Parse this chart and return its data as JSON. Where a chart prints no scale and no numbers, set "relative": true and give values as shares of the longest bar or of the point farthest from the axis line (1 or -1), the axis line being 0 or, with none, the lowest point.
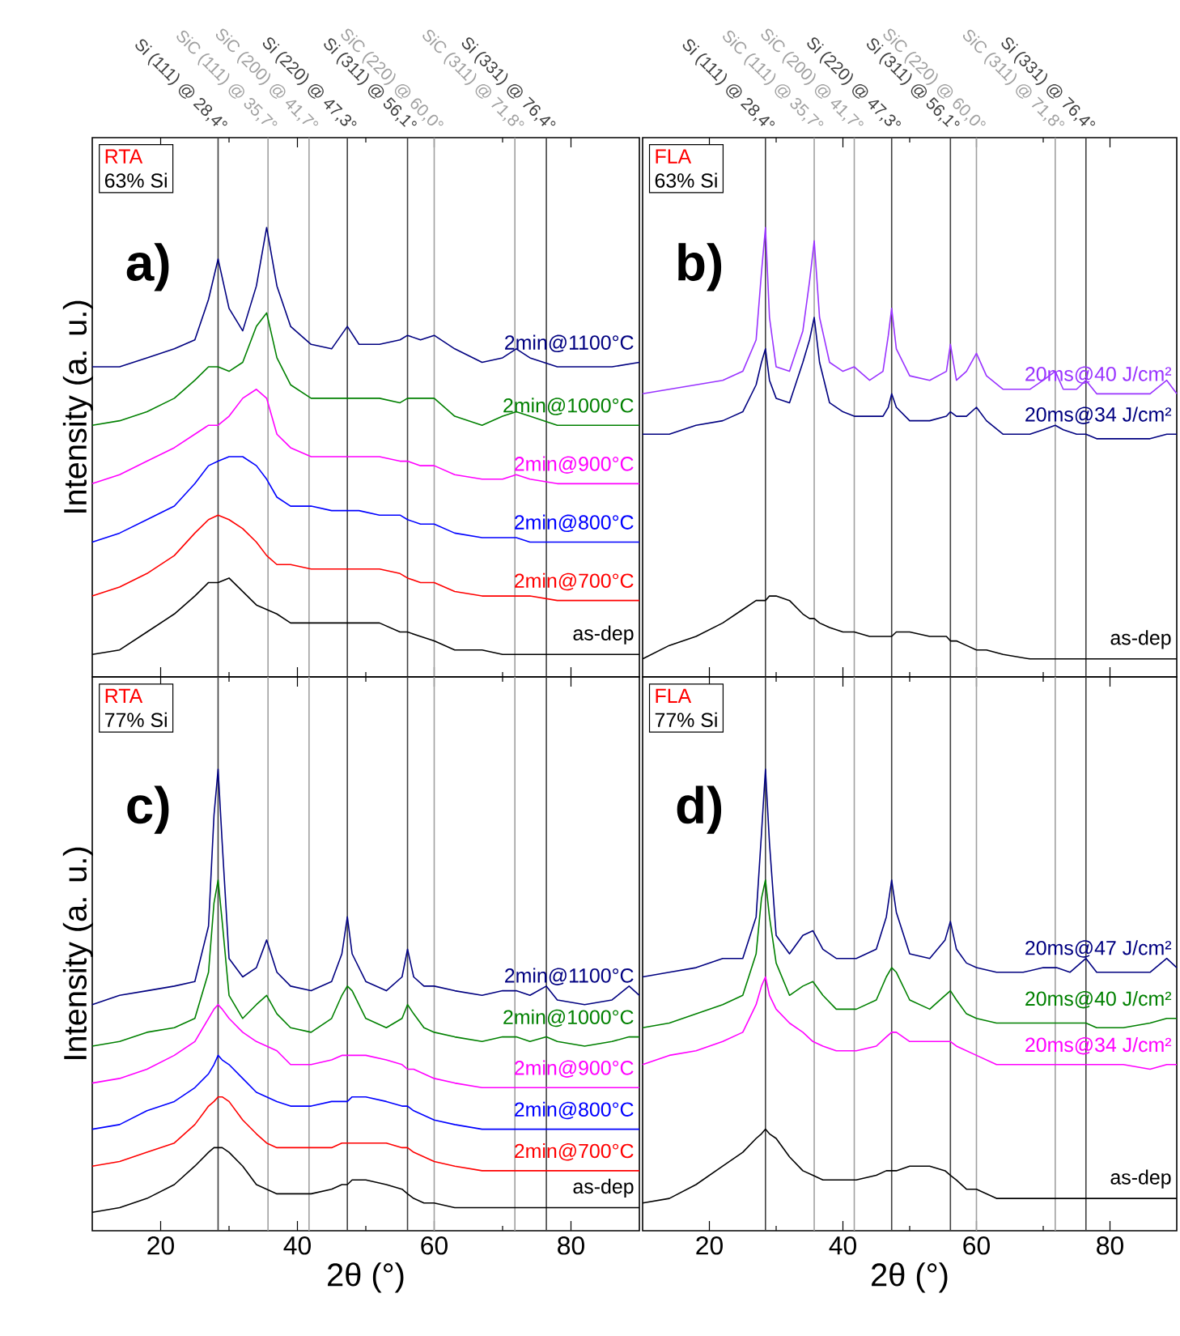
{
  "chart_data": [
    {
      "type": "line",
      "relative": true,
      "tick_labels": false,
      "ylabel": "Intensity (a. u.)",
      "xlim": [
        10,
        90
      ],
      "xticks": [
        20,
        40,
        60,
        80
      ],
      "annotations": [
        "RTA",
        "63% Si",
        "a)"
      ],
      "ref_lines": [
        {
          "axis": "x",
          "value": 28.4,
          "label": "Si (111) @ 28,4°",
          "color": "#404040"
        },
        {
          "axis": "x",
          "value": 35.7,
          "label": "SiC (111) @ 35,7°",
          "color": "#a0a0a0"
        },
        {
          "axis": "x",
          "value": 41.7,
          "label": "SiC (200) @ 41,7°",
          "color": "#a0a0a0"
        },
        {
          "axis": "x",
          "value": 47.3,
          "label": "Si (220) @ 47,3°",
          "color": "#404040"
        },
        {
          "axis": "x",
          "value": 56.1,
          "label": "Si (311) @ 56,1°",
          "color": "#404040"
        },
        {
          "axis": "x",
          "value": 60.0,
          "label": "SiC (220) @ 60,0°",
          "color": "#a0a0a0"
        },
        {
          "axis": "x",
          "value": 71.8,
          "label": "SiC (311) @ 71,8°",
          "color": "#a0a0a0"
        },
        {
          "axis": "x",
          "value": 76.4,
          "label": "Si (331) @ 76,4°",
          "color": "#404040"
        }
      ],
      "x": [
        10,
        14,
        18,
        22,
        25,
        27,
        28.4,
        30,
        32,
        34,
        35.5,
        37,
        39,
        42,
        45,
        47.3,
        49,
        52,
        55,
        56.1,
        58,
        60,
        63,
        67,
        70,
        72,
        74,
        78,
        82,
        86,
        90
      ],
      "series": [
        {
          "name": "2min@1100°C",
          "color": "#000080",
          "values": [
            0.69,
            0.69,
            0.71,
            0.73,
            0.75,
            0.84,
            0.93,
            0.82,
            0.77,
            0.87,
            1.0,
            0.87,
            0.78,
            0.74,
            0.73,
            0.78,
            0.74,
            0.74,
            0.75,
            0.76,
            0.75,
            0.76,
            0.73,
            0.7,
            0.71,
            0.73,
            0.71,
            0.69,
            0.69,
            0.69,
            0.7
          ]
        },
        {
          "name": "2min@1000°C",
          "color": "#008000",
          "values": [
            0.56,
            0.57,
            0.59,
            0.62,
            0.66,
            0.69,
            0.69,
            0.68,
            0.7,
            0.78,
            0.81,
            0.71,
            0.65,
            0.62,
            0.62,
            0.62,
            0.62,
            0.62,
            0.61,
            0.62,
            0.62,
            0.62,
            0.58,
            0.56,
            0.58,
            0.59,
            0.58,
            0.56,
            0.56,
            0.56,
            0.56
          ]
        },
        {
          "name": "2min@900°C",
          "color": "#ff00ff",
          "values": [
            0.43,
            0.45,
            0.48,
            0.51,
            0.54,
            0.56,
            0.56,
            0.58,
            0.62,
            0.64,
            0.62,
            0.54,
            0.51,
            0.49,
            0.49,
            0.49,
            0.49,
            0.49,
            0.48,
            0.48,
            0.47,
            0.47,
            0.45,
            0.44,
            0.44,
            0.45,
            0.44,
            0.43,
            0.43,
            0.43,
            0.43
          ]
        },
        {
          "name": "2min@800°C",
          "color": "#0000ff",
          "values": [
            0.3,
            0.32,
            0.35,
            0.38,
            0.43,
            0.47,
            0.48,
            0.49,
            0.49,
            0.47,
            0.44,
            0.4,
            0.38,
            0.38,
            0.37,
            0.37,
            0.37,
            0.36,
            0.36,
            0.35,
            0.34,
            0.34,
            0.32,
            0.31,
            0.31,
            0.31,
            0.3,
            0.3,
            0.3,
            0.3,
            0.3
          ]
        },
        {
          "name": "2min@700°C",
          "color": "#ff0000",
          "values": [
            0.18,
            0.2,
            0.23,
            0.27,
            0.32,
            0.35,
            0.36,
            0.35,
            0.33,
            0.3,
            0.27,
            0.25,
            0.25,
            0.24,
            0.24,
            0.24,
            0.24,
            0.24,
            0.23,
            0.22,
            0.21,
            0.21,
            0.19,
            0.18,
            0.18,
            0.18,
            0.18,
            0.17,
            0.17,
            0.17,
            0.17
          ]
        },
        {
          "name": "as-dep",
          "color": "#000000",
          "values": [
            0.05,
            0.06,
            0.1,
            0.14,
            0.18,
            0.21,
            0.21,
            0.22,
            0.19,
            0.16,
            0.15,
            0.14,
            0.12,
            0.12,
            0.12,
            0.12,
            0.12,
            0.12,
            0.1,
            0.1,
            0.09,
            0.08,
            0.06,
            0.06,
            0.05,
            0.05,
            0.05,
            0.05,
            0.05,
            0.05,
            0.05
          ]
        }
      ]
    },
    {
      "type": "line",
      "relative": true,
      "tick_labels": false,
      "xlim": [
        10,
        90
      ],
      "xticks": [
        20,
        40,
        60,
        80
      ],
      "annotations": [
        "FLA",
        "63% Si",
        "b)"
      ],
      "ref_lines": [
        {
          "axis": "x",
          "value": 28.4,
          "label": "Si (111) @ 28,4°",
          "color": "#404040"
        },
        {
          "axis": "x",
          "value": 35.7,
          "label": "SiC (111) @ 35,7°",
          "color": "#a0a0a0"
        },
        {
          "axis": "x",
          "value": 41.7,
          "label": "SiC (200) @ 41,7°",
          "color": "#a0a0a0"
        },
        {
          "axis": "x",
          "value": 47.3,
          "label": "Si (220) @ 47,3°",
          "color": "#404040"
        },
        {
          "axis": "x",
          "value": 56.1,
          "label": "Si (311) @ 56,1°",
          "color": "#404040"
        },
        {
          "axis": "x",
          "value": 60.0,
          "label": "SiC (220) @ 60,0°",
          "color": "#a0a0a0"
        },
        {
          "axis": "x",
          "value": 71.8,
          "label": "SiC (311) @ 71,8°",
          "color": "#a0a0a0"
        },
        {
          "axis": "x",
          "value": 76.4,
          "label": "Si (331) @ 76,4°",
          "color": "#404040"
        }
      ],
      "x": [
        10,
        14,
        18,
        22,
        25,
        27,
        27.8,
        28.4,
        29,
        30,
        32,
        34,
        35,
        35.7,
        36.5,
        38,
        40,
        41.7,
        44,
        46,
        46.8,
        47.3,
        48,
        50,
        53,
        55.5,
        56.1,
        57,
        58.5,
        60,
        61.5,
        64,
        68,
        70,
        71.8,
        73,
        75,
        76.4,
        78,
        82,
        86,
        88.5,
        90
      ],
      "series": [
        {
          "name": "20ms@40 J/cm²",
          "color": "#9933ff",
          "values": [
            0.63,
            0.64,
            0.65,
            0.66,
            0.68,
            0.75,
            0.9,
            1.0,
            0.8,
            0.69,
            0.68,
            0.77,
            0.88,
            0.97,
            0.8,
            0.7,
            0.68,
            0.69,
            0.66,
            0.68,
            0.76,
            0.82,
            0.73,
            0.67,
            0.66,
            0.68,
            0.74,
            0.66,
            0.68,
            0.72,
            0.67,
            0.64,
            0.64,
            0.66,
            0.68,
            0.64,
            0.64,
            0.66,
            0.63,
            0.63,
            0.63,
            0.66,
            0.63
          ]
        },
        {
          "name": "20ms@34 J/cm²",
          "color": "#000080",
          "values": [
            0.54,
            0.54,
            0.56,
            0.57,
            0.59,
            0.65,
            0.7,
            0.73,
            0.66,
            0.62,
            0.61,
            0.7,
            0.75,
            0.8,
            0.7,
            0.61,
            0.59,
            0.58,
            0.58,
            0.58,
            0.6,
            0.63,
            0.6,
            0.57,
            0.57,
            0.58,
            0.59,
            0.58,
            0.58,
            0.6,
            0.57,
            0.54,
            0.54,
            0.55,
            0.56,
            0.55,
            0.54,
            0.54,
            0.53,
            0.53,
            0.53,
            0.54,
            0.54
          ]
        },
        {
          "name": "as-dep",
          "color": "#000000",
          "values": [
            0.04,
            0.07,
            0.09,
            0.12,
            0.15,
            0.17,
            0.17,
            0.17,
            0.18,
            0.18,
            0.17,
            0.14,
            0.13,
            0.13,
            0.12,
            0.11,
            0.1,
            0.1,
            0.09,
            0.09,
            0.09,
            0.09,
            0.1,
            0.1,
            0.09,
            0.09,
            0.08,
            0.08,
            0.07,
            0.06,
            0.06,
            0.05,
            0.04,
            0.04,
            0.04,
            0.04,
            0.04,
            0.04,
            0.04,
            0.04,
            0.04,
            0.04,
            0.04
          ]
        }
      ]
    },
    {
      "type": "line",
      "relative": true,
      "tick_labels": "x",
      "xlabel": "2θ (°)",
      "ylabel": "Intensity (a. u.)",
      "xlim": [
        10,
        90
      ],
      "xticks": [
        20,
        40,
        60,
        80
      ],
      "annotations": [
        "RTA",
        "77% Si",
        "c)"
      ],
      "ref_lines": [
        {
          "axis": "x",
          "value": 28.4,
          "color": "#404040"
        },
        {
          "axis": "x",
          "value": 35.7,
          "color": "#a0a0a0"
        },
        {
          "axis": "x",
          "value": 41.7,
          "color": "#a0a0a0"
        },
        {
          "axis": "x",
          "value": 47.3,
          "color": "#404040"
        },
        {
          "axis": "x",
          "value": 56.1,
          "color": "#404040"
        },
        {
          "axis": "x",
          "value": 60.0,
          "color": "#a0a0a0"
        },
        {
          "axis": "x",
          "value": 71.8,
          "color": "#a0a0a0"
        },
        {
          "axis": "x",
          "value": 76.4,
          "color": "#404040"
        }
      ],
      "x": [
        10,
        14,
        18,
        22,
        25,
        27,
        27.8,
        28.4,
        29,
        30,
        32,
        34,
        35.5,
        37,
        39,
        42,
        45,
        46.5,
        47.3,
        48,
        50,
        53,
        55.3,
        56.1,
        57,
        58.5,
        60,
        63,
        67,
        70,
        72,
        74,
        76.4,
        78,
        82,
        86,
        88.5,
        90
      ],
      "series": [
        {
          "name": "2min@1100°C",
          "color": "#000080",
          "values": [
            0.49,
            0.51,
            0.52,
            0.53,
            0.54,
            0.66,
            0.9,
            1.0,
            0.84,
            0.59,
            0.55,
            0.57,
            0.63,
            0.56,
            0.53,
            0.52,
            0.54,
            0.6,
            0.68,
            0.6,
            0.54,
            0.52,
            0.55,
            0.61,
            0.55,
            0.53,
            0.53,
            0.52,
            0.51,
            0.52,
            0.52,
            0.51,
            0.53,
            0.5,
            0.49,
            0.5,
            0.53,
            0.51
          ]
        },
        {
          "name": "2min@1000°C",
          "color": "#008000",
          "values": [
            0.4,
            0.41,
            0.43,
            0.44,
            0.46,
            0.56,
            0.71,
            0.76,
            0.67,
            0.51,
            0.46,
            0.49,
            0.51,
            0.47,
            0.44,
            0.43,
            0.46,
            0.51,
            0.53,
            0.52,
            0.46,
            0.44,
            0.46,
            0.49,
            0.47,
            0.44,
            0.43,
            0.42,
            0.41,
            0.42,
            0.42,
            0.41,
            0.42,
            0.41,
            0.4,
            0.41,
            0.42,
            0.42
          ]
        },
        {
          "name": "2min@900°C",
          "color": "#ff00ff",
          "values": [
            0.32,
            0.33,
            0.35,
            0.38,
            0.41,
            0.46,
            0.48,
            0.49,
            0.48,
            0.46,
            0.43,
            0.41,
            0.4,
            0.39,
            0.36,
            0.36,
            0.37,
            0.38,
            0.38,
            0.38,
            0.38,
            0.37,
            0.36,
            0.35,
            0.35,
            0.34,
            0.33,
            0.32,
            0.31,
            0.31,
            0.31,
            0.31,
            0.31,
            0.31,
            0.31,
            0.31,
            0.31,
            0.31
          ]
        },
        {
          "name": "2min@800°C",
          "color": "#0000ff",
          "values": [
            0.22,
            0.23,
            0.26,
            0.28,
            0.31,
            0.34,
            0.36,
            0.38,
            0.37,
            0.36,
            0.33,
            0.3,
            0.29,
            0.28,
            0.27,
            0.27,
            0.28,
            0.28,
            0.28,
            0.29,
            0.29,
            0.28,
            0.27,
            0.27,
            0.26,
            0.25,
            0.24,
            0.23,
            0.22,
            0.22,
            0.22,
            0.22,
            0.22,
            0.22,
            0.22,
            0.22,
            0.22,
            0.22
          ]
        },
        {
          "name": "2min@700°C",
          "color": "#ff0000",
          "values": [
            0.14,
            0.15,
            0.17,
            0.19,
            0.23,
            0.27,
            0.28,
            0.29,
            0.29,
            0.28,
            0.24,
            0.21,
            0.19,
            0.18,
            0.18,
            0.18,
            0.18,
            0.19,
            0.19,
            0.19,
            0.19,
            0.19,
            0.18,
            0.18,
            0.17,
            0.16,
            0.15,
            0.14,
            0.13,
            0.13,
            0.13,
            0.13,
            0.13,
            0.13,
            0.13,
            0.13,
            0.13,
            0.13
          ]
        },
        {
          "name": "as-dep",
          "color": "#000000",
          "values": [
            0.04,
            0.05,
            0.07,
            0.1,
            0.14,
            0.17,
            0.18,
            0.18,
            0.18,
            0.17,
            0.14,
            0.1,
            0.09,
            0.08,
            0.08,
            0.08,
            0.09,
            0.1,
            0.1,
            0.11,
            0.11,
            0.1,
            0.09,
            0.08,
            0.07,
            0.06,
            0.06,
            0.05,
            0.05,
            0.05,
            0.05,
            0.05,
            0.05,
            0.05,
            0.05,
            0.05,
            0.05,
            0.05
          ]
        }
      ]
    },
    {
      "type": "line",
      "relative": true,
      "tick_labels": "x",
      "xlabel": "2θ (°)",
      "xlim": [
        10,
        90
      ],
      "xticks": [
        20,
        40,
        60,
        80
      ],
      "annotations": [
        "FLA",
        "77% Si",
        "d)"
      ],
      "ref_lines": [
        {
          "axis": "x",
          "value": 28.4,
          "color": "#404040"
        },
        {
          "axis": "x",
          "value": 35.7,
          "color": "#a0a0a0"
        },
        {
          "axis": "x",
          "value": 41.7,
          "color": "#a0a0a0"
        },
        {
          "axis": "x",
          "value": 47.3,
          "color": "#404040"
        },
        {
          "axis": "x",
          "value": 56.1,
          "color": "#404040"
        },
        {
          "axis": "x",
          "value": 60.0,
          "color": "#a0a0a0"
        },
        {
          "axis": "x",
          "value": 71.8,
          "color": "#a0a0a0"
        },
        {
          "axis": "x",
          "value": 76.4,
          "color": "#404040"
        }
      ],
      "x": [
        10,
        14,
        18,
        22,
        25,
        27,
        27.8,
        28.4,
        29,
        30,
        32,
        34,
        35.5,
        37,
        39,
        42,
        45,
        46.5,
        47.3,
        48,
        50,
        53,
        55.3,
        56.1,
        57,
        58.5,
        60,
        63,
        67,
        70,
        72,
        74,
        76.4,
        78,
        82,
        86,
        88.5,
        90
      ],
      "series": [
        {
          "name": "20ms@47 J/cm²",
          "color": "#000080",
          "values": [
            0.55,
            0.56,
            0.57,
            0.59,
            0.59,
            0.68,
            0.86,
            1.0,
            0.84,
            0.64,
            0.6,
            0.64,
            0.65,
            0.61,
            0.59,
            0.59,
            0.61,
            0.68,
            0.76,
            0.69,
            0.6,
            0.59,
            0.63,
            0.67,
            0.61,
            0.58,
            0.57,
            0.56,
            0.56,
            0.57,
            0.57,
            0.56,
            0.59,
            0.56,
            0.56,
            0.56,
            0.59,
            0.57
          ]
        },
        {
          "name": "20ms@40 J/cm²",
          "color": "#008000",
          "values": [
            0.44,
            0.45,
            0.47,
            0.49,
            0.51,
            0.6,
            0.72,
            0.76,
            0.68,
            0.58,
            0.51,
            0.53,
            0.54,
            0.51,
            0.48,
            0.48,
            0.5,
            0.55,
            0.57,
            0.56,
            0.5,
            0.48,
            0.51,
            0.52,
            0.5,
            0.47,
            0.46,
            0.45,
            0.45,
            0.45,
            0.45,
            0.45,
            0.45,
            0.44,
            0.44,
            0.45,
            0.46,
            0.46
          ]
        },
        {
          "name": "20ms@34 J/cm²",
          "color": "#ff00ff",
          "values": [
            0.36,
            0.38,
            0.39,
            0.41,
            0.43,
            0.49,
            0.53,
            0.55,
            0.51,
            0.48,
            0.45,
            0.43,
            0.41,
            0.4,
            0.39,
            0.39,
            0.4,
            0.42,
            0.43,
            0.43,
            0.41,
            0.41,
            0.41,
            0.41,
            0.4,
            0.39,
            0.38,
            0.36,
            0.36,
            0.36,
            0.36,
            0.36,
            0.36,
            0.36,
            0.36,
            0.35,
            0.36,
            0.36
          ]
        },
        {
          "name": "as-dep",
          "color": "#000000",
          "values": [
            0.06,
            0.07,
            0.1,
            0.14,
            0.17,
            0.2,
            0.21,
            0.22,
            0.21,
            0.2,
            0.16,
            0.13,
            0.12,
            0.11,
            0.11,
            0.11,
            0.12,
            0.13,
            0.13,
            0.13,
            0.14,
            0.14,
            0.13,
            0.12,
            0.11,
            0.09,
            0.09,
            0.07,
            0.07,
            0.07,
            0.07,
            0.07,
            0.07,
            0.07,
            0.07,
            0.07,
            0.07,
            0.07
          ]
        }
      ]
    }
  ]
}
